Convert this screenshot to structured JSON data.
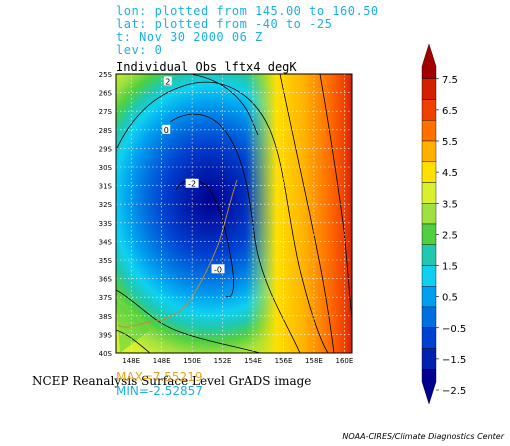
{
  "header": {
    "lon": "lon: plotted from 145.00 to 160.50",
    "lat": "lat: plotted from -40 to -25",
    "time": "t: Nov 30 2000 06 Z",
    "lev": "lev: 0"
  },
  "footer": {
    "reanalysis": "NCEP Reanalysis Surface Level GrADS image",
    "max": "MAX=7.55219",
    "min": "MIN=-2.52857",
    "credit": "NOAA-CIRES/Climate Diagnostics Center"
  },
  "colors": {
    "header_text": "#1ab1e6",
    "max_text": "#e6a520",
    "min_text": "#1ab1e6"
  },
  "chart_data": {
    "type": "heatmap",
    "title": "Individual Obs lftx4 degK",
    "xlabel": "",
    "ylabel": "",
    "x_ticks": [
      "148E",
      "148E",
      "150E",
      "152E",
      "154E",
      "156E",
      "158E",
      "160E"
    ],
    "y_ticks": [
      "25S",
      "26S",
      "27S",
      "28S",
      "29S",
      "30S",
      "31S",
      "32S",
      "33S",
      "34S",
      "35S",
      "36S",
      "37S",
      "38S",
      "39S",
      "40S"
    ],
    "xlim": [
      145.0,
      160.5
    ],
    "ylim": [
      -40,
      -25
    ],
    "grid": true,
    "colorbar": {
      "ticks": [
        "7.5",
        "6.5",
        "5.5",
        "4.5",
        "3.5",
        "2.5",
        "1.5",
        "0.5",
        "−0.5",
        "−1.5",
        "−2.5"
      ],
      "colors": [
        "#a00000",
        "#d02000",
        "#f04000",
        "#ff7000",
        "#ffb000",
        "#ffe000",
        "#d8f030",
        "#a0e040",
        "#50d040",
        "#20c8b0",
        "#10d0f0",
        "#00a0f0",
        "#0070e0",
        "#0040d0",
        "#0020b0",
        "#000090"
      ]
    },
    "contour_labels": [
      {
        "value": "2",
        "lon": 148.4,
        "lat": -25.4
      },
      {
        "value": "0",
        "lon": 148.3,
        "lat": -28.0
      },
      {
        "value": "-2",
        "lon": 150.0,
        "lat": -30.9
      },
      {
        "value": "-0",
        "lon": 151.7,
        "lat": -35.5
      }
    ],
    "value_range": {
      "min": -2.52857,
      "max": 7.55219
    }
  }
}
